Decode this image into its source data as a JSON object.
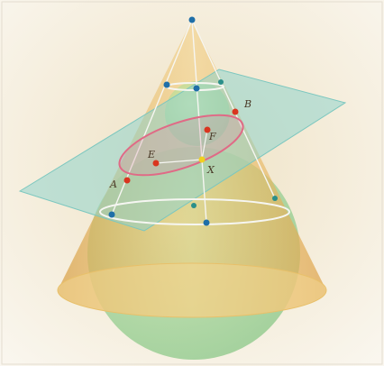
{
  "figure": {
    "labels": {
      "A": "A",
      "B": "B",
      "E": "E",
      "F": "F",
      "X": "X"
    },
    "colors": {
      "background_outer": "#f7f3ea",
      "background_inner": "#f0e6cf",
      "cone_fill": "#e8b85c",
      "sphere_fill": "#a9d8a0",
      "plane_fill": "#8fd3cc",
      "ellipse_stroke": "#e06a86",
      "circle_stroke": "#f5f5f5",
      "point_blue": "#1f6fa8",
      "point_red": "#d9351f",
      "point_yellow": "#f0d020"
    }
  }
}
